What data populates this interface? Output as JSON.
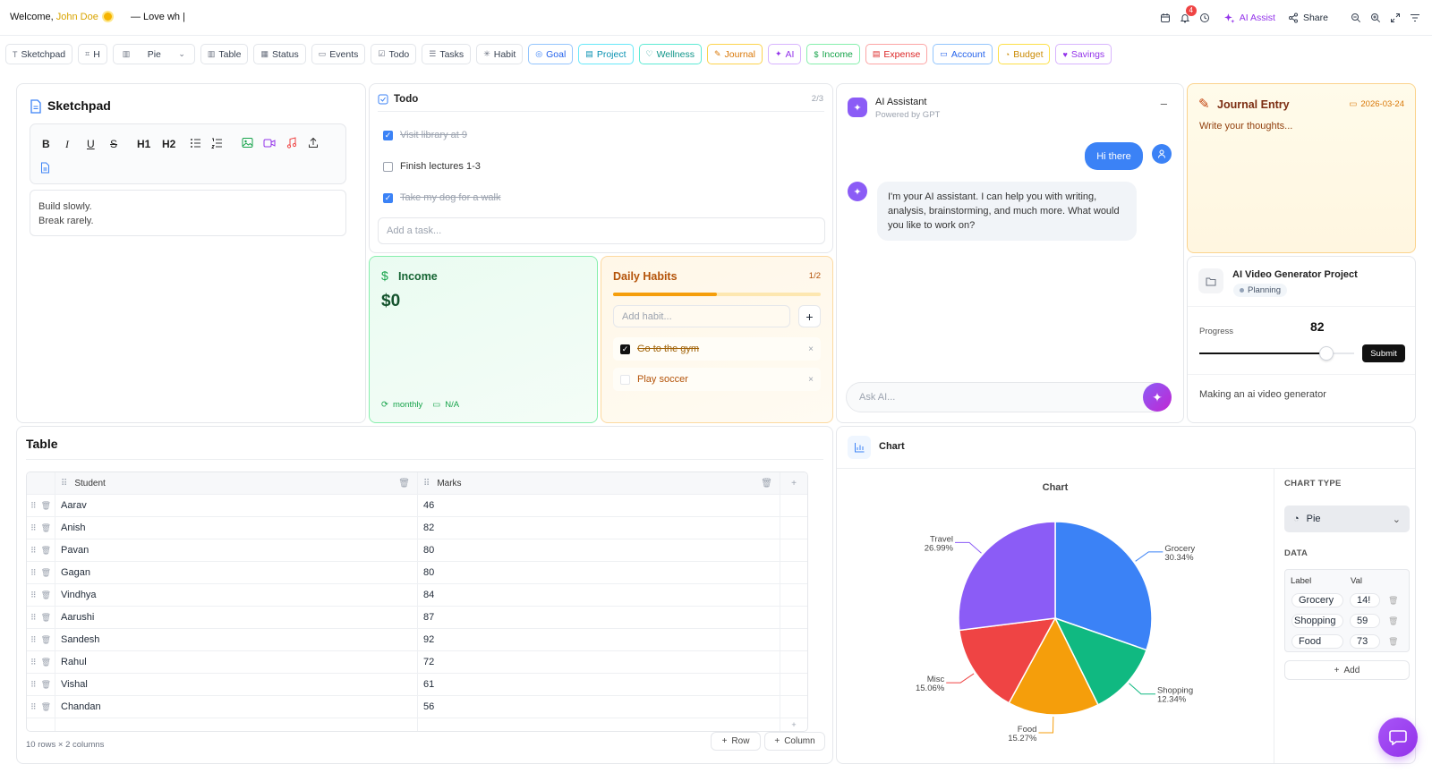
{
  "header": {
    "welcome_prefix": "Welcome,",
    "user_name": "John Doe",
    "tagline": "—  Love wh |",
    "notifications_count": "4",
    "ai_assist_label": "AI Assist",
    "share_label": "Share"
  },
  "toolbar": {
    "items": [
      "Sketchpad",
      "H",
      "Pie",
      "Table",
      "Status",
      "Events",
      "Todo",
      "Tasks",
      "Habit",
      "Goal",
      "Project",
      "Wellness",
      "Journal",
      "AI",
      "Income",
      "Expense",
      "Account",
      "Budget",
      "Savings"
    ],
    "colors": {
      "Goal": "#3b82f6",
      "Project": "#0891b2",
      "Wellness": "#0d9488",
      "Journal": "#d97706",
      "AI": "#9333ea",
      "Income": "#16a34a",
      "Expense": "#dc2626",
      "Account": "#2563eb",
      "Budget": "#ca8a04",
      "Savings": "#9333ea"
    }
  },
  "sketchpad": {
    "title": "Sketchpad",
    "tools": [
      "B",
      "I",
      "U",
      "S",
      "H1",
      "H2"
    ],
    "lines": [
      "Build slowly.",
      "Break rarely."
    ]
  },
  "todo": {
    "title": "Todo",
    "count": "2/3",
    "items": [
      {
        "text": "Visit library at 9",
        "done": true
      },
      {
        "text": "Finish lectures 1-3",
        "done": false
      },
      {
        "text": "Take my dog for a walk",
        "done": true
      }
    ],
    "placeholder": "Add a task..."
  },
  "income": {
    "title": "Income",
    "amount": "$0",
    "period": "monthly",
    "date": "N/A"
  },
  "habits": {
    "title": "Daily Habits",
    "count": "1/2",
    "progress": 0.5,
    "placeholder": "Add habit...",
    "items": [
      {
        "text": "Go to the gym",
        "done": true
      },
      {
        "text": "Play soccer",
        "done": false
      }
    ]
  },
  "assistant": {
    "title": "AI Assistant",
    "subtitle": "Powered by GPT",
    "user_message": "Hi there",
    "ai_message": "I'm your AI assistant. I can help you with writing, analysis, brainstorming, and much more. What would you like to work on?",
    "placeholder": "Ask AI..."
  },
  "journal": {
    "title": "Journal Entry",
    "date": "2026-03-24",
    "placeholder": "Write your thoughts..."
  },
  "project": {
    "title": "AI Video Generator Project",
    "status": "Planning",
    "progress_label": "Progress",
    "progress_value": "82",
    "slider_value": 0.82,
    "submit_label": "Submit",
    "description": "Making an ai video generator"
  },
  "table": {
    "title": "Table",
    "columns": [
      "Student",
      "Marks"
    ],
    "rows": [
      [
        "Aarav",
        "46"
      ],
      [
        "Anish",
        "82"
      ],
      [
        "Pavan",
        "80"
      ],
      [
        "Gagan",
        "80"
      ],
      [
        "Vindhya",
        "84"
      ],
      [
        "Aarushi",
        "87"
      ],
      [
        "Sandesh",
        "92"
      ],
      [
        "Rahul",
        "72"
      ],
      [
        "Vishal",
        "61"
      ],
      [
        "Chandan",
        "56"
      ]
    ],
    "footer": "10 rows × 2 columns",
    "add_row_label": "Row",
    "add_column_label": "Column"
  },
  "chart_panel": {
    "title": "Chart",
    "chart_type_label": "CHART TYPE",
    "chart_type_value": "Pie",
    "data_label": "DATA",
    "label_col": "Label",
    "val_col": "Val",
    "data_rows": [
      {
        "label": "Grocery",
        "val": "14!"
      },
      {
        "label": "Shopping",
        "val": "59"
      },
      {
        "label": "Food",
        "val": "73"
      }
    ],
    "add_label": "Add"
  },
  "chart_data": {
    "type": "pie",
    "title": "Chart",
    "slices": [
      {
        "label": "Grocery",
        "percent": "30.34%",
        "value": 30.34,
        "color": "#3b82f6"
      },
      {
        "label": "Shopping",
        "percent": "12.34%",
        "value": 12.34,
        "color": "#10b981"
      },
      {
        "label": "Food",
        "percent": "15.27%",
        "value": 15.27,
        "color": "#f59e0b"
      },
      {
        "label": "Misc",
        "percent": "15.06%",
        "value": 15.06,
        "color": "#ef4444"
      },
      {
        "label": "Travel",
        "percent": "26.99%",
        "value": 26.99,
        "color": "#8b5cf6"
      }
    ]
  }
}
